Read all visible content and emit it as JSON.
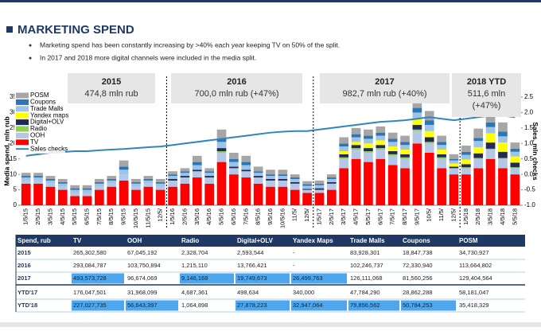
{
  "title": "MARKETING SPEND",
  "bullets": [
    "Marketing spend has been constantly increasing by >40% each year keeping TV on 50% of the split.",
    "In 2017 and 2018 more digital channels were included in the media split."
  ],
  "chart_data": {
    "type": "bar",
    "stacked": true,
    "y_label": "Media spend, mln rub",
    "y2_label": "Sales, mln checks",
    "categories": [
      "1/5/15",
      "2/5/15",
      "3/5/15",
      "4/5/15",
      "5/5/15",
      "6/5/15",
      "7/5/15",
      "8/5/15",
      "9/5/15",
      "10/5/15",
      "11/5/15",
      "12/5/",
      "1/5/16",
      "2/5/16",
      "3/5/16",
      "4/5/16",
      "5/5/16",
      "6/5/16",
      "7/5/16",
      "8/5/16",
      "9/5/16",
      "10/5/16",
      "11/5/",
      "12/5/",
      "1/5/17",
      "2/5/17",
      "3/5/17",
      "4/5/17",
      "5/5/17",
      "6/5/17",
      "7/5/17",
      "8/5/17",
      "9/5/17",
      "10/5/",
      "11/5/",
      "12/5/",
      "1/5/18",
      "2/5/18",
      "3/5/18",
      "4/5/18",
      "5/5/18"
    ],
    "ylim": [
      0,
      35
    ],
    "yticks": [
      0,
      5,
      10,
      15,
      20,
      25,
      30,
      35
    ],
    "y2lim": [
      -1,
      2.5
    ],
    "y2ticks": [
      {
        "value": -1,
        "label": "-1.0"
      },
      -0.5,
      {
        "value": 0,
        "label": "0.0"
      },
      0.5,
      {
        "value": 1,
        "label": "1.0"
      },
      1.5,
      {
        "value": 2,
        "label": "2.0"
      },
      2.5
    ],
    "series": [
      {
        "name": "TV",
        "color": "#ff0000",
        "values": [
          7,
          7,
          6,
          5,
          3,
          3,
          5,
          6,
          8,
          5,
          6,
          5,
          6,
          7,
          9,
          7,
          14,
          10,
          9,
          7,
          6,
          6,
          5,
          4,
          4,
          5,
          12,
          15,
          14,
          15,
          13,
          12,
          20,
          17,
          12,
          10,
          10,
          12,
          15,
          12,
          10
        ]
      },
      {
        "name": "OOH",
        "color": "#b4c7e7",
        "values": [
          1,
          1,
          1,
          1,
          1,
          1,
          1,
          1,
          2,
          1,
          1,
          1,
          2,
          2,
          2,
          2,
          3,
          2,
          2,
          2,
          2,
          2,
          2,
          1,
          1,
          2,
          3,
          3,
          3,
          3,
          3,
          3,
          4,
          3,
          3,
          2,
          2,
          3,
          3,
          3,
          2
        ]
      },
      {
        "name": "Radio",
        "color": "#92d050",
        "values": [
          0,
          0,
          0,
          0,
          0,
          0,
          0,
          0,
          0,
          0,
          0,
          0,
          0,
          0,
          0,
          0,
          0.5,
          0,
          0,
          0,
          0,
          0,
          0,
          0,
          0,
          0,
          0.5,
          0.5,
          0.5,
          0.5,
          0.5,
          0.5,
          0.5,
          0.5,
          0.5,
          0,
          0.3,
          0.3,
          0.3,
          0.3,
          0.3
        ]
      },
      {
        "name": "Digital+OLV",
        "color": "#222a5c",
        "values": [
          0,
          0,
          0,
          0,
          0,
          0,
          0,
          0,
          0,
          0,
          0,
          0,
          0.5,
          0.5,
          0.5,
          0.5,
          1,
          0.5,
          0.5,
          0.5,
          0.5,
          0.5,
          0.5,
          0.3,
          0.5,
          0.5,
          1,
          1,
          1,
          1,
          1,
          1,
          1.5,
          1.5,
          1,
          0.5,
          1,
          1.5,
          2,
          2,
          1.5
        ]
      },
      {
        "name": "Yandex maps",
        "color": "#ffff00",
        "values": [
          0,
          0,
          0,
          0,
          0,
          0,
          0,
          0,
          0,
          0,
          0,
          0,
          0,
          0,
          0,
          0,
          0,
          0,
          0,
          0,
          0,
          0,
          0,
          0,
          0,
          0,
          1,
          1,
          1.5,
          1.5,
          1.5,
          1.5,
          2,
          2,
          1.5,
          1,
          1.5,
          2,
          3,
          3,
          2
        ]
      },
      {
        "name": "Trade Malls",
        "color": "#9dc3e6",
        "values": [
          1,
          1,
          1,
          1,
          1,
          1,
          1,
          1,
          1.5,
          1,
          1,
          1,
          1,
          1,
          1.5,
          1,
          2,
          1.5,
          1.5,
          1,
          1,
          1,
          1,
          1,
          1,
          1,
          1.5,
          1.5,
          1.5,
          1.5,
          1.5,
          1.5,
          2,
          2,
          1.5,
          1,
          1.5,
          2,
          2,
          2,
          1.5
        ]
      },
      {
        "name": "Coupons",
        "color": "#2e75b6",
        "values": [
          0.5,
          0.5,
          0.5,
          0.5,
          0.5,
          0.5,
          0.5,
          0.5,
          1,
          0.5,
          0.5,
          0.5,
          0.5,
          0.5,
          1,
          0.5,
          1,
          1,
          1,
          0.5,
          0.5,
          0.5,
          0.5,
          0.5,
          0.5,
          0.5,
          1,
          1,
          1,
          1,
          1,
          1,
          1.5,
          1.5,
          1,
          0.5,
          1,
          1,
          1.5,
          1.5,
          1
        ]
      },
      {
        "name": "POSM",
        "color": "#a6a6a6",
        "values": [
          1,
          1,
          1,
          1,
          1,
          1,
          1,
          1,
          2,
          1,
          1,
          1,
          1,
          1,
          2,
          1,
          3,
          2,
          2,
          1.5,
          1.5,
          1.5,
          1,
          1,
          1,
          1,
          2,
          2,
          2,
          2,
          2,
          2,
          4,
          3,
          2,
          1.5,
          2,
          3,
          3,
          3,
          2
        ]
      },
      {
        "name": "Sales checks",
        "color": "#2e86c1",
        "type": "line",
        "axis": "y2",
        "values": [
          0.6,
          0.65,
          0.7,
          0.72,
          0.75,
          0.75,
          0.78,
          0.8,
          0.82,
          0.85,
          0.88,
          0.9,
          0.95,
          1.0,
          1.05,
          1.1,
          1.15,
          1.2,
          1.25,
          1.3,
          1.35,
          1.38,
          1.4,
          1.4,
          1.45,
          1.5,
          1.55,
          1.6,
          1.65,
          1.7,
          1.72,
          1.75,
          1.8,
          1.85,
          1.8,
          1.75,
          1.8,
          1.85,
          1.9,
          1.9,
          1.85
        ]
      }
    ],
    "annotations": [
      {
        "title": "2015",
        "lines": [
          "474,8 mln rub"
        ]
      },
      {
        "title": "2016",
        "lines": [
          "700,0 mln  rub (+47%)"
        ]
      },
      {
        "title": "2017",
        "lines": [
          "982,7 mln rub (+40%)"
        ]
      },
      {
        "title": "2018 YTD",
        "lines": [
          "511,6 mln",
          "(+47%)"
        ]
      }
    ]
  },
  "table": {
    "header": [
      "Spend, rub",
      "TV",
      "OOH",
      "Radio",
      "Digital+OLV",
      "Yandex Maps",
      "Trade Malls",
      "Coupons",
      "POSM"
    ],
    "rows": [
      [
        "2015",
        "265,302,580",
        "67,045,192",
        "2,328,704",
        "2,593,544",
        "-",
        "83,928,301",
        "18,847,738",
        "34,730,927"
      ],
      [
        "2016",
        "293,084,787",
        "103,750,894",
        "1,215,110",
        "13,766,421",
        "-",
        "102,246,737",
        "72,330,940",
        "113,664,802"
      ],
      [
        "2017",
        "493,573,728",
        "96,674,069",
        "9,146,168",
        "19,749,673",
        "26,499,763",
        "126,111,068",
        "81,560,256",
        "129,404,564"
      ],
      [
        "YTD'17",
        "176,047,501",
        "31,968,099",
        "4,687,361",
        "498,634",
        "340,000",
        "47,784,290",
        "28,862,288",
        "58,181,047"
      ],
      [
        "YTD'18",
        "227,027,735",
        "56,643,397",
        "1,064,898",
        "27,878,223",
        "32,947,064",
        "79,856,562",
        "50,784,253",
        "35,418,329"
      ]
    ],
    "highlight": [
      [
        false,
        false,
        false,
        false,
        false,
        false,
        false,
        false,
        false
      ],
      [
        false,
        false,
        false,
        false,
        false,
        false,
        false,
        false,
        false
      ],
      [
        false,
        true,
        false,
        true,
        true,
        true,
        false,
        false,
        false
      ],
      [
        false,
        false,
        false,
        false,
        false,
        false,
        false,
        false,
        false
      ],
      [
        false,
        true,
        true,
        false,
        true,
        true,
        true,
        true,
        false
      ]
    ]
  }
}
